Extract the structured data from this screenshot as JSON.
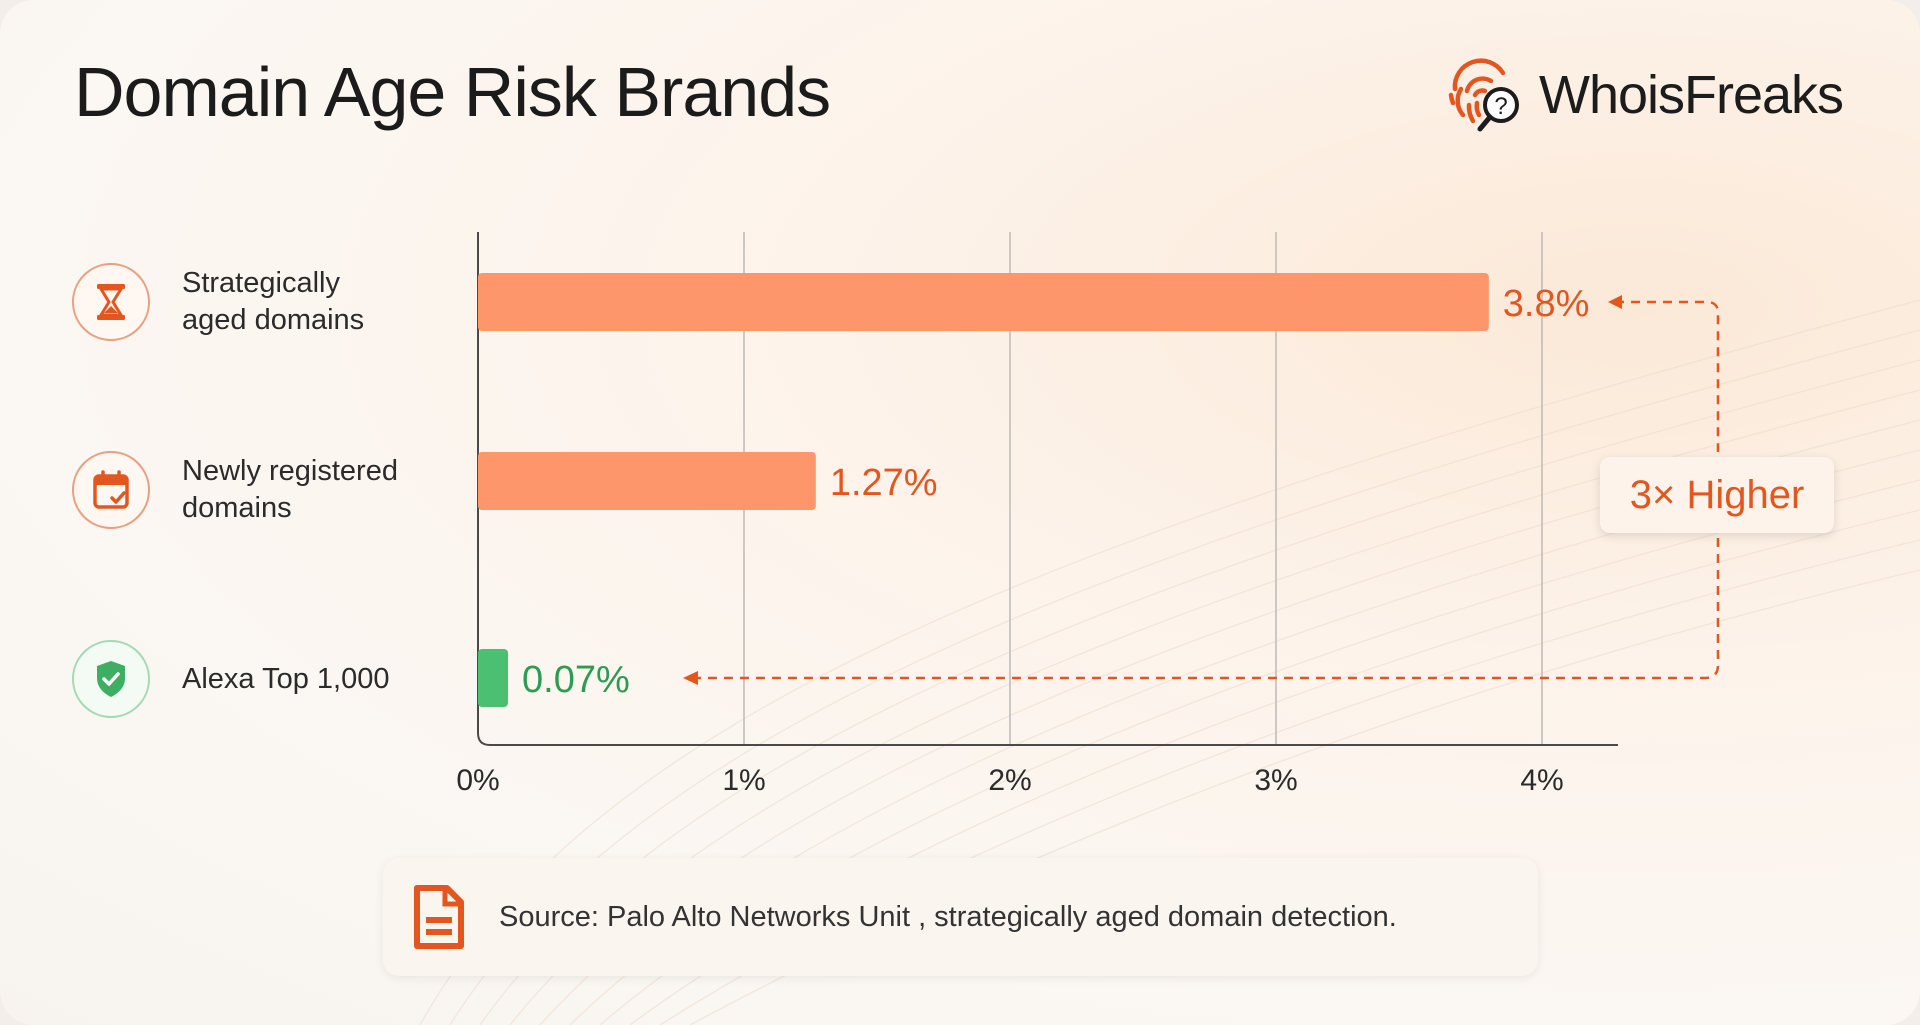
{
  "title": "Domain Age Risk Brands",
  "brand": {
    "name": "WhoisFreaks"
  },
  "categories": [
    {
      "label_line1": "Strategically",
      "label_line2": "aged domains",
      "icon": "hourglass-icon"
    },
    {
      "label_line1": "Newly registered",
      "label_line2": "domains",
      "icon": "calendar-check-icon"
    },
    {
      "label_line1": "Alexa Top 1,000",
      "label_line2": "",
      "icon": "shield-check-icon"
    }
  ],
  "annotation": "3× Higher",
  "source": "Source: Palo Alto Networks Unit , strategically aged domain detection.",
  "colors": {
    "accent": "#e4561f",
    "bar_orange": "#fe966b",
    "bar_green": "#4dbf72",
    "label_green": "#2e9a52"
  },
  "chart_data": {
    "type": "bar",
    "orientation": "horizontal",
    "categories": [
      "Strategically aged domains",
      "Newly registered domains",
      "Alexa Top 1,000"
    ],
    "values": [
      3.8,
      1.27,
      0.07
    ],
    "value_labels": [
      "3.8%",
      "1.27%",
      "0.07%"
    ],
    "xlim": [
      0,
      4.3
    ],
    "x_ticks": [
      0,
      1,
      2,
      3,
      4
    ],
    "x_tick_labels": [
      "0%",
      "1%",
      "2%",
      "3%",
      "4%"
    ],
    "grid": true
  }
}
